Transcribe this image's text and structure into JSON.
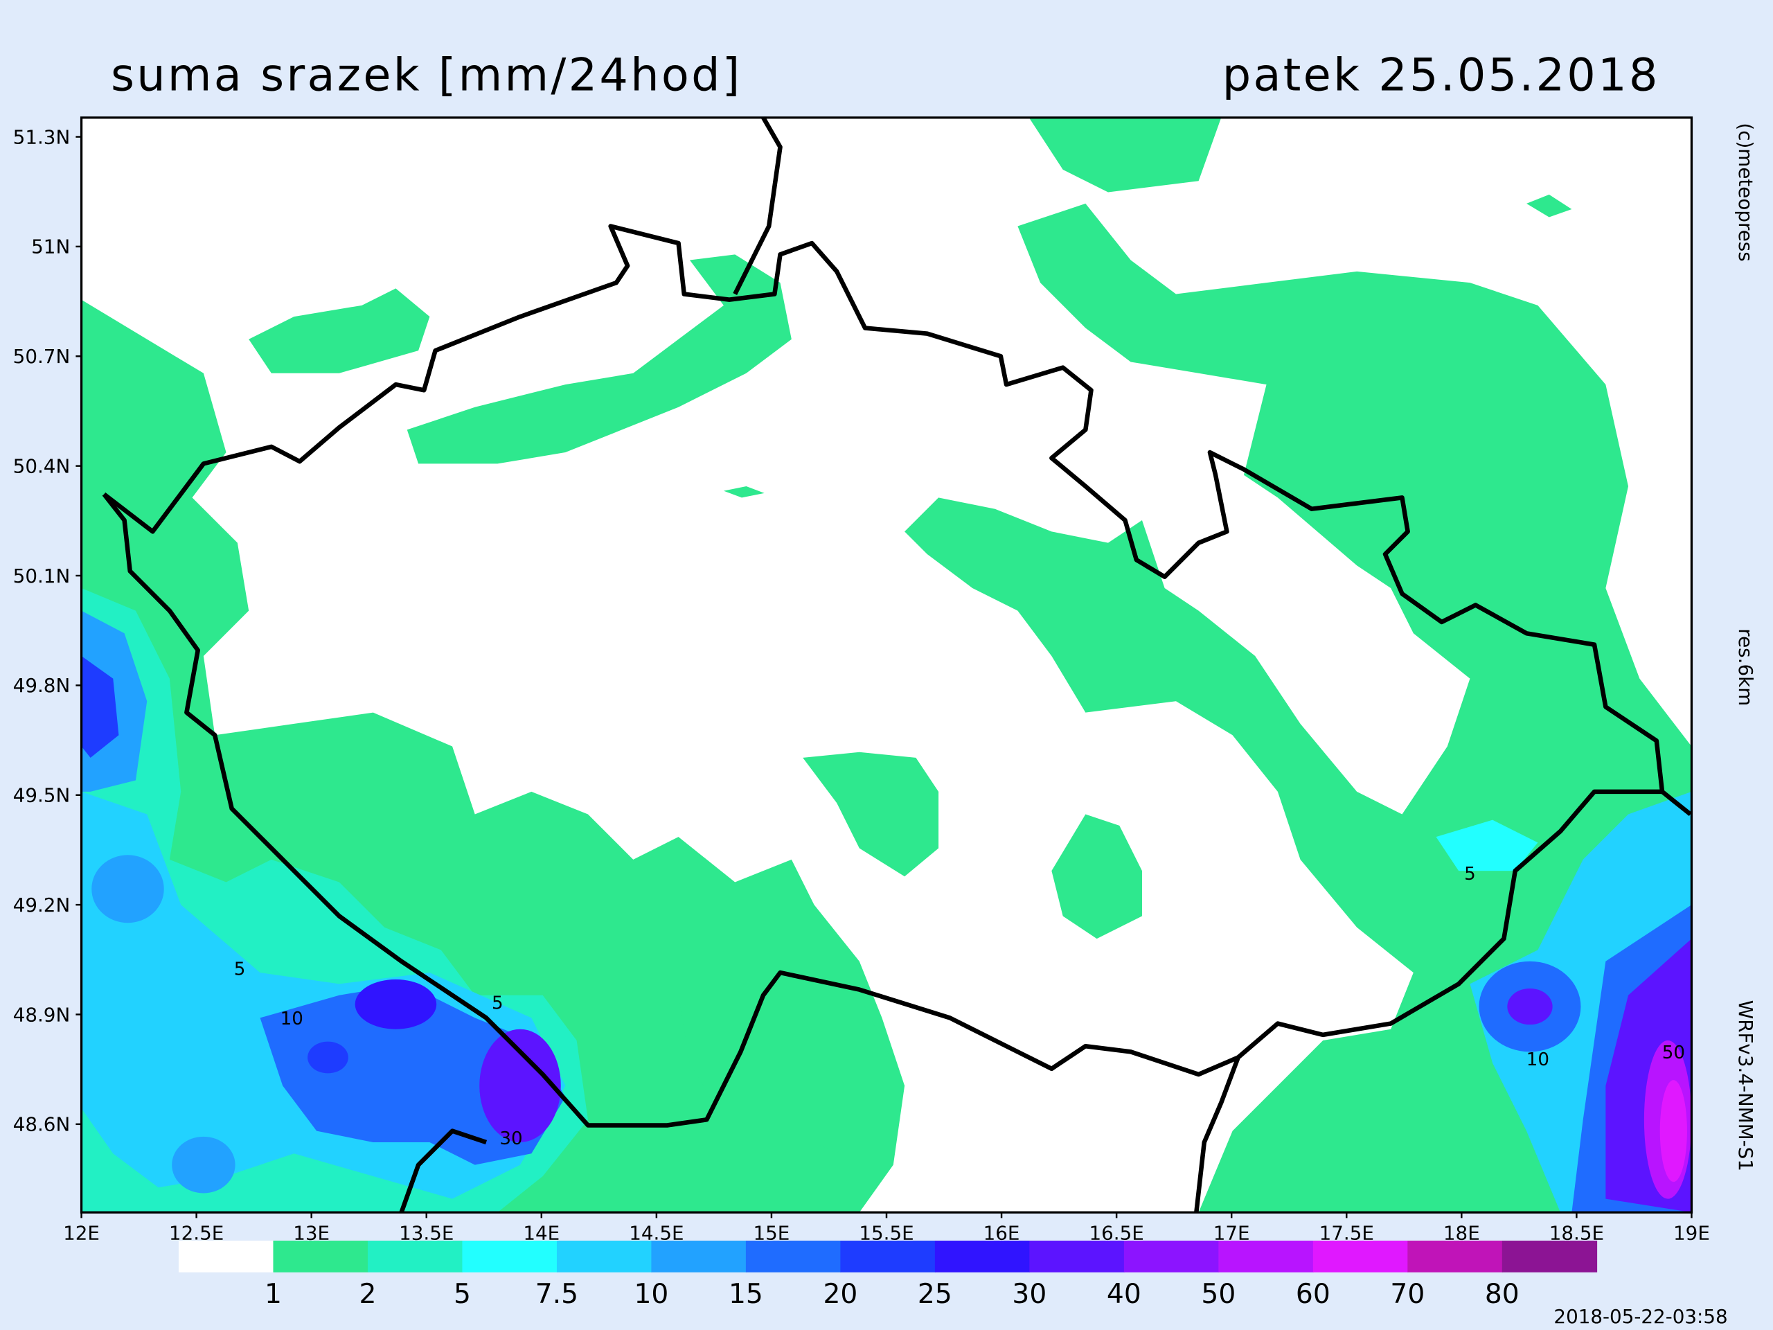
{
  "header": {
    "title": "suma srazek [mm/24hod]",
    "date": "patek 25.05.2018"
  },
  "map": {
    "lat_labels": [
      "51.3N",
      "51N",
      "50.7N",
      "50.4N",
      "50.1N",
      "49.8N",
      "49.5N",
      "49.2N",
      "48.9N",
      "48.6N"
    ],
    "lon_labels": [
      "12E",
      "12.5E",
      "13E",
      "13.5E",
      "14E",
      "14.5E",
      "15E",
      "15.5E",
      "16E",
      "16.5E",
      "17E",
      "17.5E",
      "18E",
      "18.5E",
      "19E"
    ],
    "contour_labels": [
      "5",
      "10",
      "5",
      "30",
      "5",
      "10",
      "50"
    ]
  },
  "colorbar": {
    "levels": [
      1,
      2,
      5,
      7.5,
      10,
      15,
      20,
      25,
      30,
      40,
      50,
      60,
      70,
      80
    ],
    "colors": [
      "#ffffff",
      "#2ee88e",
      "#22f0c4",
      "#22ffff",
      "#22d2ff",
      "#22a2ff",
      "#1f6cff",
      "#1e3cff",
      "#3014ff",
      "#5c14ff",
      "#8c14ff",
      "#b814ff",
      "#e018ff",
      "#c014b8",
      "#8c1494"
    ]
  },
  "side": {
    "copyright": "(c)meteopress",
    "resolution": "res.6km",
    "model": "WRFv3.4-NMM-S1",
    "timestamp": "2018-05-22-03:58"
  }
}
